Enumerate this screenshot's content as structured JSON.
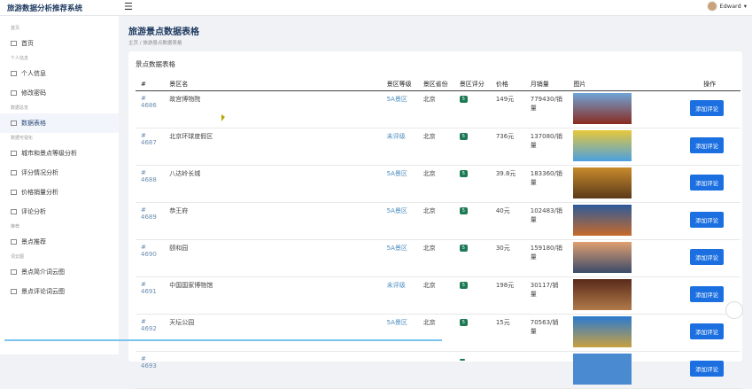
{
  "app": {
    "title": "旅游数据分析推荐系统",
    "user": "Edward"
  },
  "sidebar": {
    "sections": [
      {
        "title": "首页",
        "items": [
          {
            "label": "首页",
            "icon": "home-icon"
          }
        ]
      },
      {
        "title": "个人信息",
        "items": [
          {
            "label": "个人信息",
            "icon": "user-card-icon"
          },
          {
            "label": "修改密码",
            "icon": "key-icon"
          }
        ]
      },
      {
        "title": "数据总览",
        "items": [
          {
            "label": "数据表格",
            "icon": "table-icon",
            "active": true
          }
        ]
      },
      {
        "title": "数据可视化",
        "items": [
          {
            "label": "城市和景点等级分析",
            "icon": "chart-icon"
          },
          {
            "label": "评分情况分析",
            "icon": "chart-icon"
          },
          {
            "label": "价格销量分析",
            "icon": "chart-icon"
          },
          {
            "label": "评论分析",
            "icon": "bar-chart-icon"
          }
        ]
      },
      {
        "title": "推荐",
        "items": [
          {
            "label": "景点推荐",
            "icon": "recommend-icon"
          }
        ]
      },
      {
        "title": "词云图",
        "items": [
          {
            "label": "景点简介词云图",
            "icon": "cloud-icon"
          },
          {
            "label": "景点评论词云图",
            "icon": "cloud-icon"
          }
        ]
      }
    ]
  },
  "page": {
    "title": "旅游景点数据表格",
    "breadcrumb": [
      "主页",
      "/",
      "旅游景点数据表格"
    ],
    "card_title": "景点数据表格"
  },
  "table": {
    "headers": [
      "#",
      "景区名",
      "景区等级",
      "景区省份",
      "景区评分",
      "价格",
      "月销量",
      "图片",
      "操作"
    ],
    "action_label": "添加评论",
    "rows": [
      {
        "id": "# 4686",
        "name": "故宫博物院",
        "level": "5A景区",
        "province": "北京",
        "score": "5",
        "price": "149元",
        "sales": "779430/销量",
        "img": [
          "#6fa4d8",
          "#8a2b20"
        ]
      },
      {
        "id": "# 4687",
        "name": "北京环球度假区",
        "level": "未评级",
        "province": "北京",
        "score": "5",
        "price": "736元",
        "sales": "137080/销量",
        "img": [
          "#e8c83a",
          "#4aa0e0"
        ]
      },
      {
        "id": "# 4688",
        "name": "八达岭长城",
        "level": "5A景区",
        "province": "北京",
        "score": "5",
        "price": "39.8元",
        "sales": "183360/销量",
        "img": [
          "#c98a2c",
          "#5a3a1a"
        ]
      },
      {
        "id": "# 4689",
        "name": "恭王府",
        "level": "5A景区",
        "province": "北京",
        "score": "5",
        "price": "40元",
        "sales": "102483/销量",
        "img": [
          "#2c5a9a",
          "#c86a2a"
        ]
      },
      {
        "id": "# 4690",
        "name": "颐和园",
        "level": "5A景区",
        "province": "北京",
        "score": "5",
        "price": "30元",
        "sales": "159180/销量",
        "img": [
          "#e0a070",
          "#3a4a6a"
        ]
      },
      {
        "id": "# 4691",
        "name": "中国国家博物馆",
        "level": "未评级",
        "province": "北京",
        "score": "5",
        "price": "198元",
        "sales": "30117/销量",
        "img": [
          "#5a2a1a",
          "#b07a4a"
        ]
      },
      {
        "id": "# 4692",
        "name": "天坛公园",
        "level": "5A景区",
        "province": "北京",
        "score": "5",
        "price": "15元",
        "sales": "70563/销量",
        "img": [
          "#2a7ad0",
          "#c8a040"
        ]
      },
      {
        "id": "# 4693",
        "name": "",
        "level": "",
        "province": "",
        "score": "",
        "price": "",
        "sales": "",
        "img": [
          "#4a8ad0",
          "#4a8ad0"
        ]
      }
    ]
  }
}
